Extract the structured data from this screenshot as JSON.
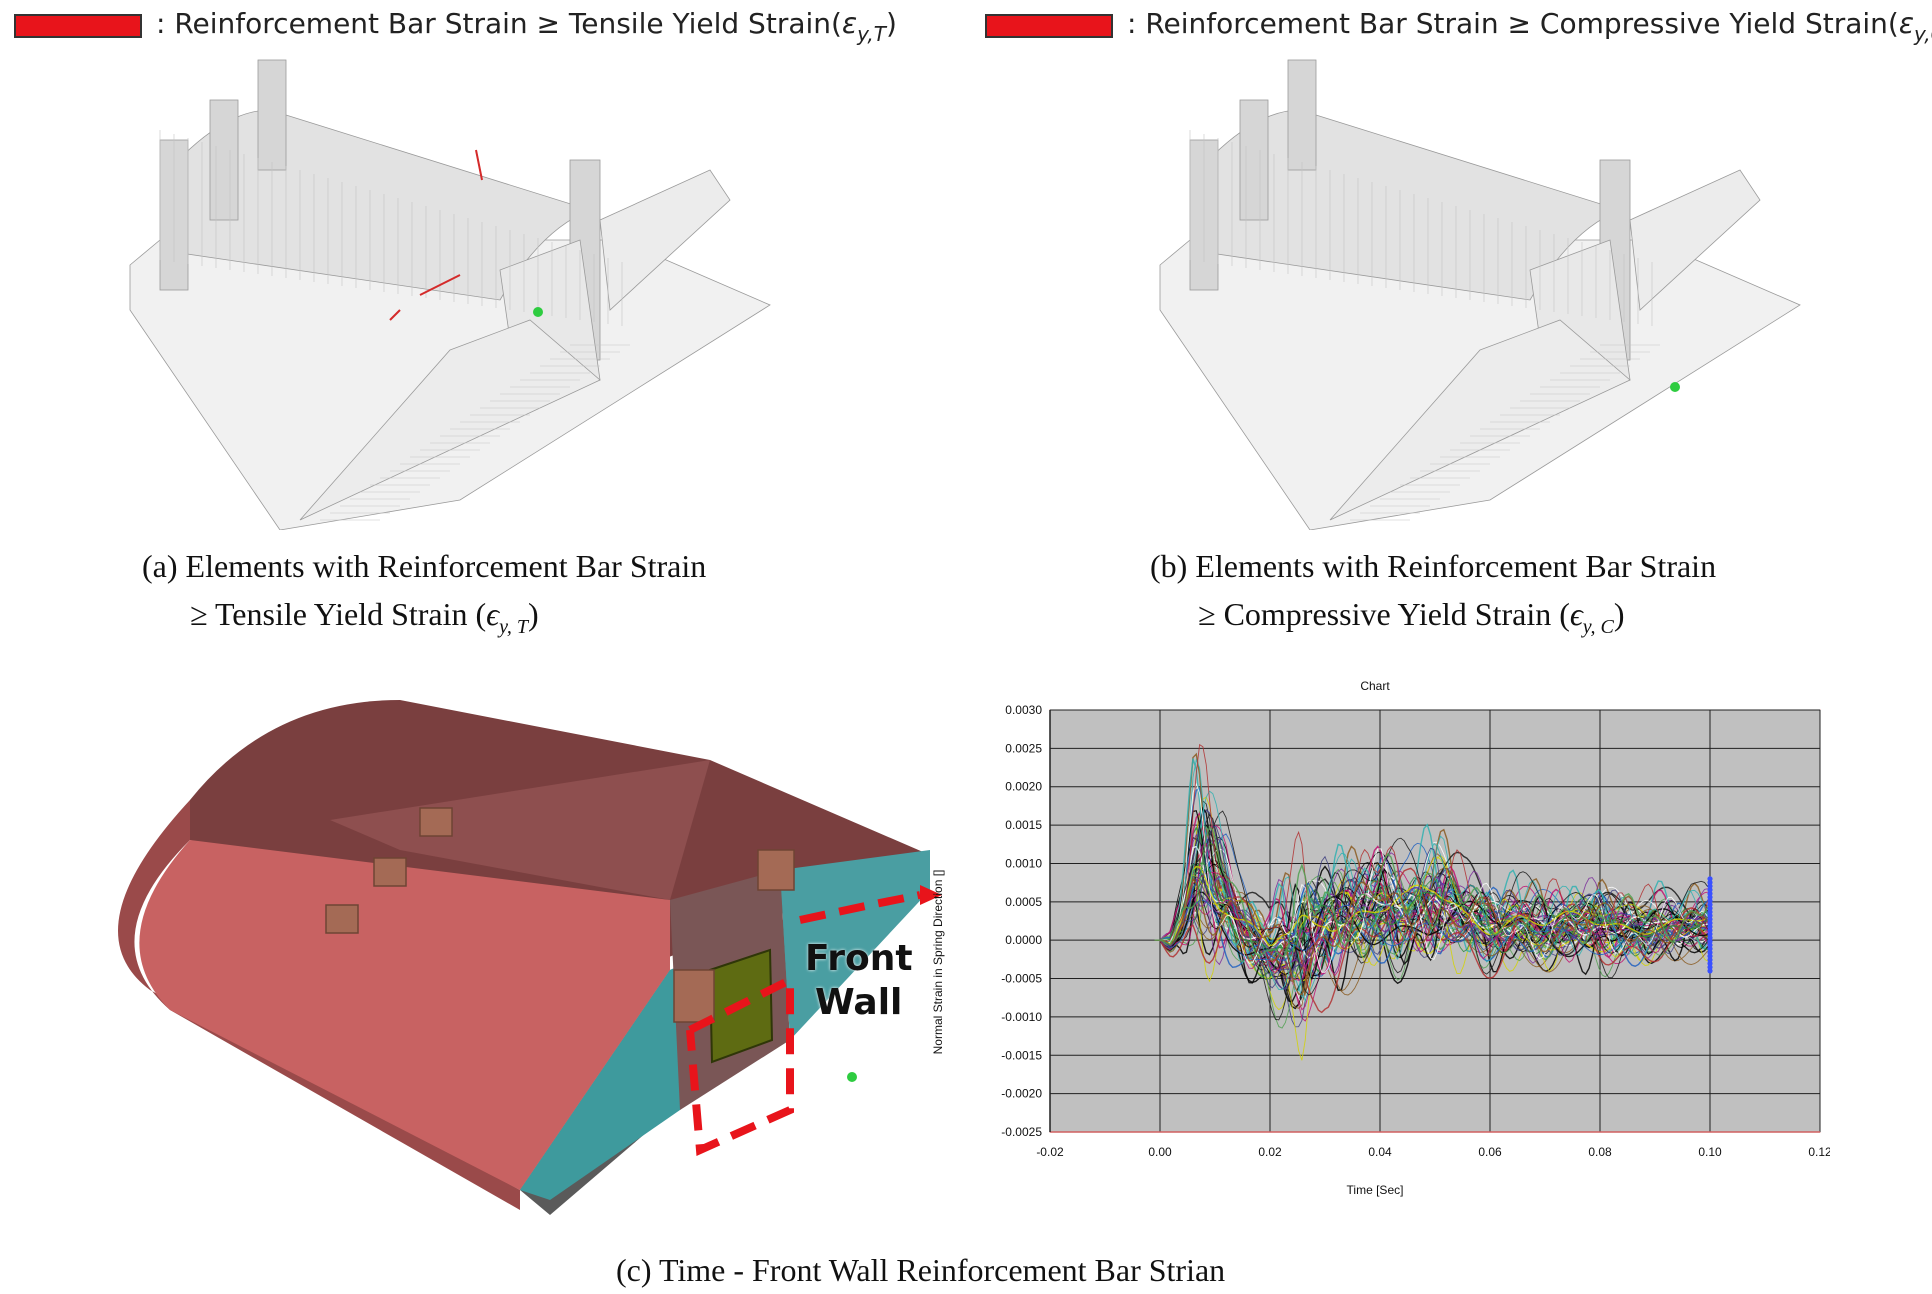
{
  "panel_a": {
    "legend_label": ": Reinforcement Bar Strain ≥ Tensile Yield Strain(",
    "legend_symbol": "ε",
    "legend_sub": "y,T",
    "legend_close": ")",
    "caption_line1": "(a) Elements with Reinforcement Bar Strain",
    "caption_line2": "≥ Tensile Yield Strain (",
    "caption_symbol": "ϵ",
    "caption_sub": "y, T",
    "caption_close": ")"
  },
  "panel_b": {
    "legend_label": ": Reinforcement Bar Strain ≥ Compressive Yield Strain(",
    "legend_symbol": "ε",
    "legend_sub": "y,C",
    "legend_close": ")",
    "caption_line1": "(b) Elements with Reinforcement Bar Strain",
    "caption_line2": "≥ Compressive Yield Strain (",
    "caption_symbol": "ϵ",
    "caption_sub": "y, C",
    "caption_close": ")"
  },
  "panel_c": {
    "label_line1": "Front",
    "label_line2": "Wall",
    "caption": "(c) Time - Front Wall Reinforcement Bar Strian"
  },
  "colors": {
    "legend_red": "#e8141b",
    "chart_bg": "#c0c0c0",
    "roof": "#8e4f4f",
    "front_face": "#c86262",
    "wall_teal": "#3e9a9d"
  },
  "chart_data": {
    "type": "line",
    "title": "Chart",
    "xlabel": "Time [Sec]",
    "ylabel": "Normal Strain in Spring Direction []",
    "xlim": [
      -0.02,
      0.12
    ],
    "ylim": [
      -0.0025,
      0.003
    ],
    "x_ticks": [
      "-0.02",
      "0.00",
      "0.02",
      "0.04",
      "0.06",
      "0.08",
      "0.10",
      "0.12"
    ],
    "y_ticks": [
      "0.0030",
      "0.0025",
      "0.0020",
      "0.0015",
      "0.0010",
      "0.0005",
      "0.0000",
      "-0.0005",
      "-0.0010",
      "-0.0015",
      "-0.0020",
      "-0.0025"
    ],
    "grid": true,
    "envelope": {
      "x": [
        0.0,
        0.002,
        0.004,
        0.006,
        0.007,
        0.008,
        0.01,
        0.012,
        0.014,
        0.016,
        0.018,
        0.02,
        0.022,
        0.024,
        0.026,
        0.028,
        0.03,
        0.035,
        0.04,
        0.045,
        0.05,
        0.055,
        0.06,
        0.065,
        0.07,
        0.075,
        0.08,
        0.085,
        0.09,
        0.095,
        0.1
      ],
      "upper": [
        0.0,
        0.0002,
        0.0012,
        0.0024,
        0.0026,
        0.0025,
        0.002,
        0.0016,
        0.001,
        0.0008,
        0.0006,
        0.0005,
        0.001,
        0.0012,
        0.0016,
        0.0013,
        0.0014,
        0.0013,
        0.0015,
        0.0013,
        0.0016,
        0.0011,
        0.0009,
        0.001,
        0.0008,
        0.0008,
        0.0009,
        0.0008,
        0.0008,
        0.0007,
        0.0008
      ],
      "lower": [
        0.0,
        -0.0003,
        -0.0006,
        -0.0007,
        -0.0008,
        -0.0008,
        -0.0007,
        -0.0006,
        -0.0005,
        -0.0006,
        -0.0007,
        -0.0009,
        -0.0012,
        -0.0016,
        -0.0019,
        -0.0012,
        -0.0009,
        -0.0007,
        -0.0006,
        -0.0006,
        -0.0006,
        -0.0006,
        -0.0005,
        -0.0005,
        -0.0005,
        -0.0005,
        -0.0005,
        -0.0005,
        -0.0004,
        -0.0004,
        -0.0004
      ]
    }
  }
}
